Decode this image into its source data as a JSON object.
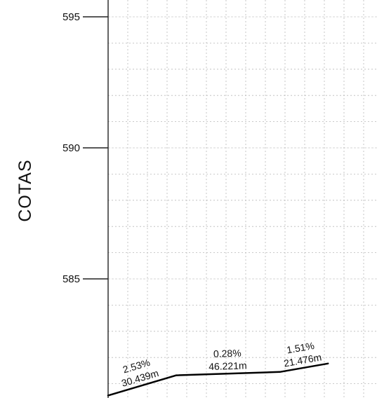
{
  "chart_data": {
    "type": "line",
    "title": "",
    "xlabel": "",
    "ylabel": "COTAS",
    "ylim": [
      580.5,
      596.0
    ],
    "xlim": [
      0,
      120
    ],
    "grid": true,
    "y_ticks": [
      {
        "value": 595,
        "label": "595"
      },
      {
        "value": 590,
        "label": "590"
      },
      {
        "value": 585,
        "label": "585"
      }
    ],
    "series": [
      {
        "x": [
          0,
          30.439,
          76.66,
          98.136
        ],
        "y": [
          580.55,
          581.32,
          581.45,
          581.77
        ]
      }
    ],
    "segment_labels": [
      {
        "x": 15.2,
        "slope": "2.53%",
        "length": "30.439m"
      },
      {
        "x": 53.5,
        "slope": "0.28%",
        "length": "46.221m"
      },
      {
        "x": 87.4,
        "slope": "1.51%",
        "length": "21.476m"
      }
    ]
  }
}
